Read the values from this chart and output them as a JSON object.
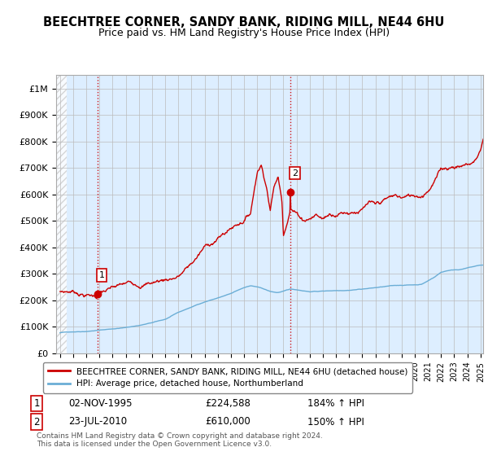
{
  "title": "BEECHTREE CORNER, SANDY BANK, RIDING MILL, NE44 6HU",
  "subtitle": "Price paid vs. HM Land Registry's House Price Index (HPI)",
  "ylim": [
    0,
    1050000
  ],
  "yticks": [
    0,
    100000,
    200000,
    300000,
    400000,
    500000,
    600000,
    700000,
    800000,
    900000,
    1000000
  ],
  "ytick_labels": [
    "£0",
    "£100K",
    "£200K",
    "£300K",
    "£400K",
    "£500K",
    "£600K",
    "£700K",
    "£800K",
    "£900K",
    "£1M"
  ],
  "sale1_date": 1995.84,
  "sale1_price": 224588,
  "sale2_date": 2010.55,
  "sale2_price": 610000,
  "hpi_line_color": "#6baed6",
  "price_line_color": "#cc0000",
  "vline_color": "#cc0000",
  "plot_bg_color": "#ddeeff",
  "background_color": "#ffffff",
  "grid_color": "#bbbbbb",
  "legend_entry1": "BEECHTREE CORNER, SANDY BANK, RIDING MILL, NE44 6HU (detached house)",
  "legend_entry2": "HPI: Average price, detached house, Northumberland",
  "annotation1_date": "02-NOV-1995",
  "annotation1_price": "£224,588",
  "annotation1_hpi": "184% ↑ HPI",
  "annotation2_date": "23-JUL-2010",
  "annotation2_price": "£610,000",
  "annotation2_hpi": "150% ↑ HPI",
  "footer": "Contains HM Land Registry data © Crown copyright and database right 2024.\nThis data is licensed under the Open Government Licence v3.0.",
  "title_fontsize": 10.5,
  "subtitle_fontsize": 9,
  "tick_fontsize": 8
}
